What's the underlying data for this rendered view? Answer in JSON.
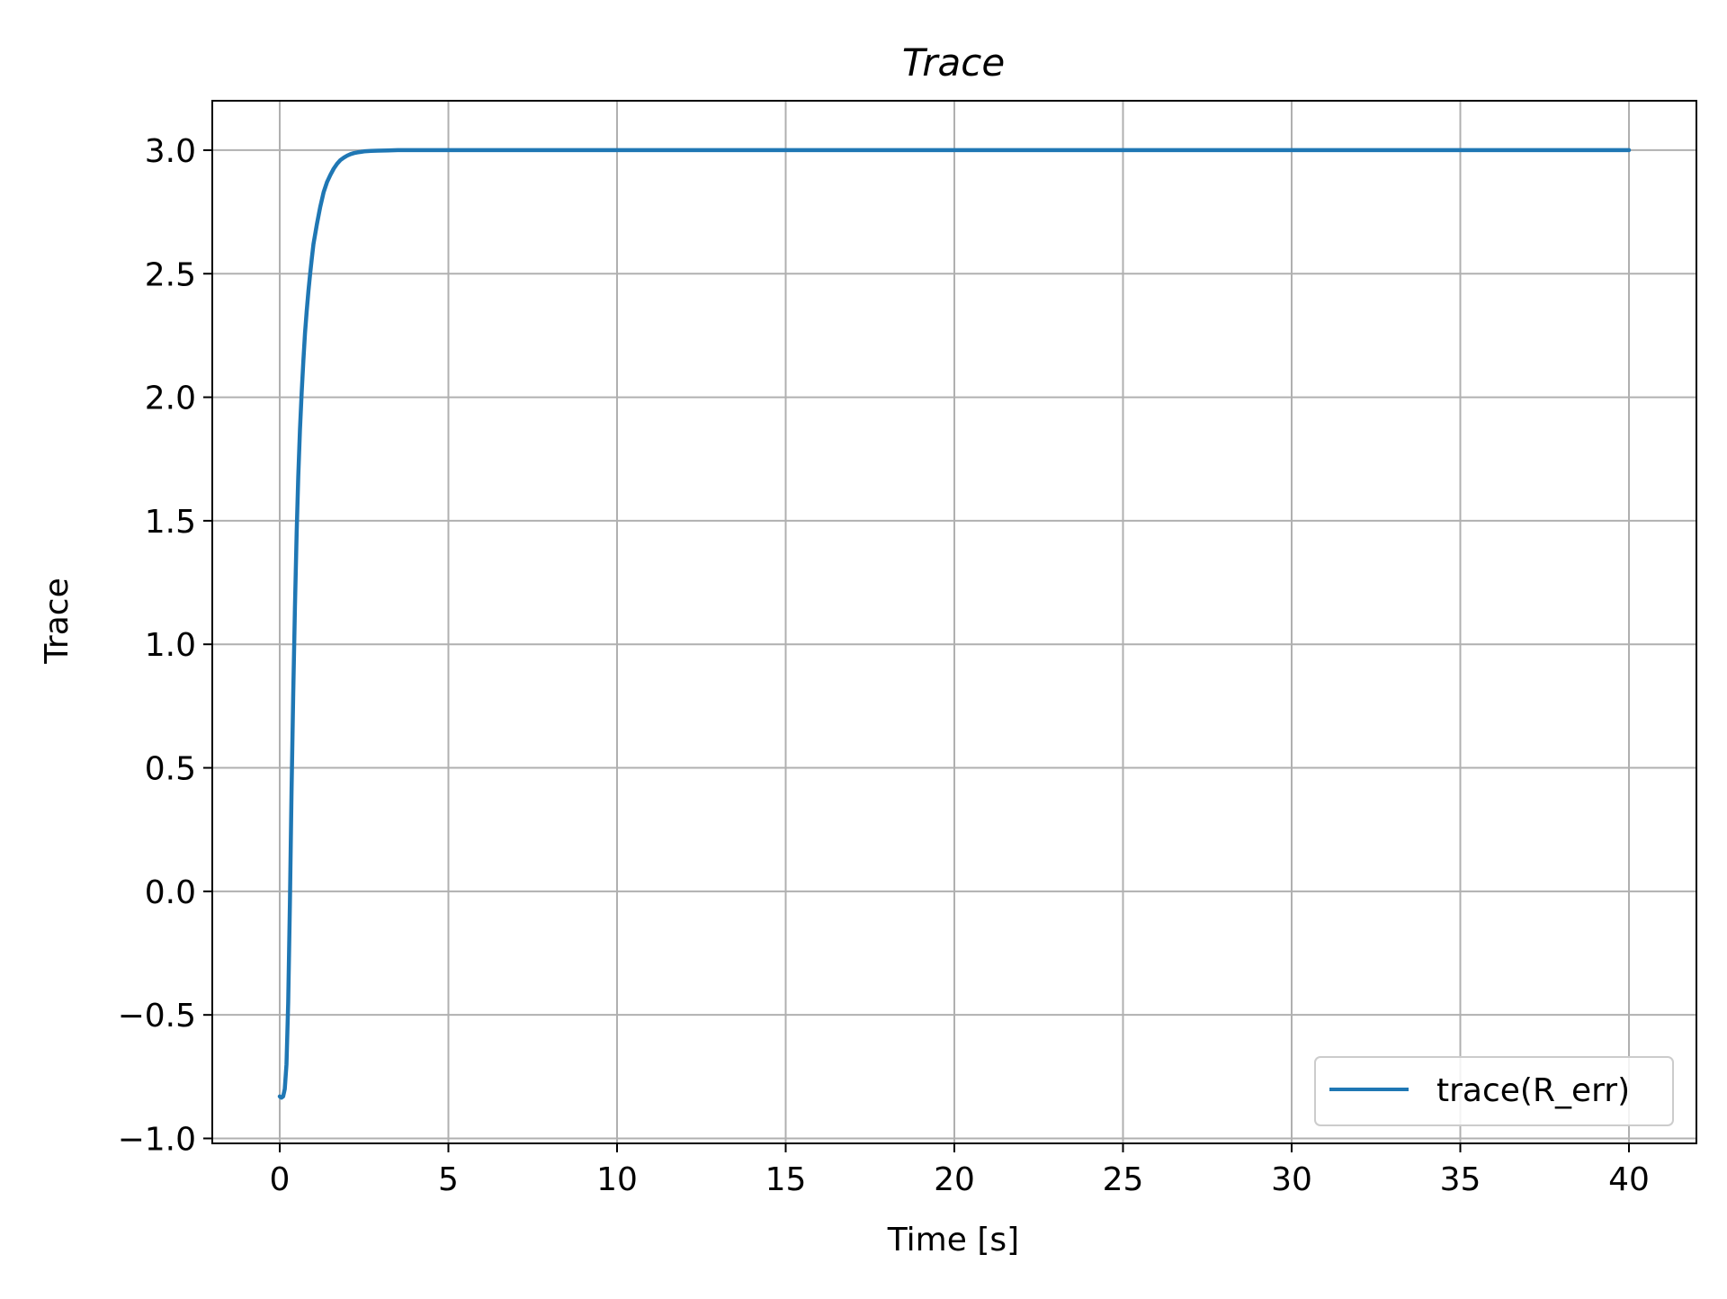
{
  "chart_data": {
    "type": "line",
    "title": "Trace",
    "xlabel": "Time [s]",
    "ylabel": "Trace",
    "xlim": [
      -2,
      42
    ],
    "ylim": [
      -1.02,
      3.2
    ],
    "xticks": [
      0,
      5,
      10,
      15,
      20,
      25,
      30,
      35,
      40
    ],
    "xtick_labels": [
      "0",
      "5",
      "10",
      "15",
      "20",
      "25",
      "30",
      "35",
      "40"
    ],
    "yticks": [
      -1.0,
      -0.5,
      0.0,
      0.5,
      1.0,
      1.5,
      2.0,
      2.5,
      3.0
    ],
    "ytick_labels": [
      "−1.0",
      "−0.5",
      "0.0",
      "0.5",
      "1.0",
      "1.5",
      "2.0",
      "2.5",
      "3.0"
    ],
    "grid": true,
    "legend_position": "lower-right",
    "series": [
      {
        "name": "trace(R_err)",
        "color": "#1f77b4",
        "x": [
          0,
          0.05,
          0.1,
          0.15,
          0.2,
          0.25,
          0.3,
          0.35,
          0.4,
          0.45,
          0.5,
          0.55,
          0.6,
          0.65,
          0.7,
          0.75,
          0.8,
          0.85,
          0.9,
          0.95,
          1.0,
          1.1,
          1.2,
          1.3,
          1.4,
          1.5,
          1.6,
          1.7,
          1.8,
          1.9,
          2.0,
          2.1,
          2.2,
          2.3,
          2.4,
          2.5,
          2.7,
          2.9,
          3.2,
          3.5,
          4.0,
          5.0,
          10,
          20,
          30,
          40
        ],
        "y": [
          -0.83,
          -0.835,
          -0.83,
          -0.8,
          -0.7,
          -0.45,
          -0.05,
          0.4,
          0.8,
          1.15,
          1.45,
          1.68,
          1.87,
          2.02,
          2.15,
          2.26,
          2.35,
          2.43,
          2.5,
          2.56,
          2.62,
          2.7,
          2.77,
          2.83,
          2.87,
          2.9,
          2.925,
          2.945,
          2.96,
          2.97,
          2.978,
          2.984,
          2.988,
          2.991,
          2.993,
          2.995,
          2.997,
          2.998,
          2.999,
          3.0,
          3.0,
          3.0,
          3.0,
          3.0,
          3.0,
          3.0
        ]
      }
    ]
  }
}
